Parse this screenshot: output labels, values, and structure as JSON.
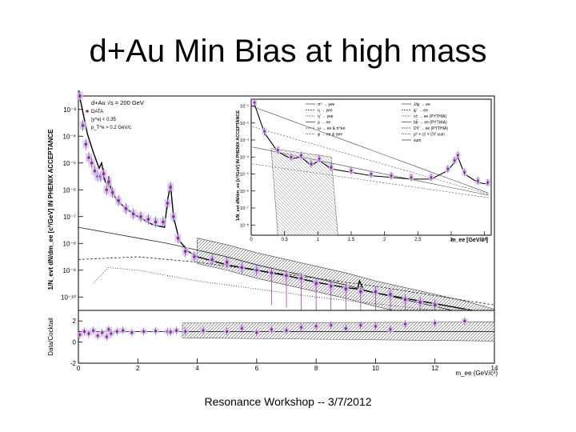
{
  "slide": {
    "title": "d+Au Min Bias at high mass",
    "footer": "Resonance Workshop -- 3/7/2012"
  },
  "chart_data": [
    {
      "type": "scatter",
      "panel": "main",
      "title": "",
      "header_lines": [
        "d+Au √s = 200 GeV",
        "DATA",
        "|y^e| < 0.35",
        "p_T^e > 0.2 GeV/c"
      ],
      "ylabel": "1/N_evt dN/dm_ee [c²/GeV] IN PHENIX ACCEPTANCE",
      "xlabel": "",
      "yscale": "log",
      "ylim_exp": [
        -10.5,
        -2.5
      ],
      "ytick_labels": [
        "10⁻³",
        "10⁻⁴",
        "10⁻⁵",
        "10⁻⁶",
        "10⁻⁷",
        "10⁻⁸",
        "10⁻⁹",
        "10⁻¹⁰"
      ],
      "xlim": [
        0,
        14
      ],
      "grid": false,
      "series": [
        {
          "name": "DATA",
          "color": "#a020a0",
          "x": [
            0.05,
            0.15,
            0.25,
            0.35,
            0.45,
            0.55,
            0.65,
            0.75,
            0.85,
            0.95,
            1.02,
            1.15,
            1.35,
            1.6,
            1.85,
            2.1,
            2.35,
            2.6,
            2.85,
            3.0,
            3.1,
            3.2,
            3.35,
            3.6,
            3.9,
            4.5,
            5.0,
            5.5,
            6.0,
            6.5,
            7.0,
            7.5,
            8.0,
            8.5,
            9.0,
            9.5,
            10.0,
            10.5,
            11.0,
            11.5,
            12.0,
            13.0
          ],
          "y": [
            -2.5,
            -3.6,
            -4.3,
            -4.8,
            -5.0,
            -5.3,
            -5.5,
            -5.5,
            -5.4,
            -6.0,
            -5.7,
            -6.1,
            -6.4,
            -6.7,
            -6.9,
            -7.0,
            -7.1,
            -7.2,
            -7.2,
            -6.5,
            -5.9,
            -7.0,
            -7.8,
            -8.3,
            -8.5,
            -8.6,
            -8.7,
            -8.9,
            -9.0,
            -9.1,
            -9.2,
            -9.3,
            -9.5,
            -9.6,
            -9.7,
            -9.8,
            -9.8,
            -9.9,
            -10.1,
            -10.2,
            -10.3,
            -10.6
          ]
        },
        {
          "name": "sum",
          "x": [
            0.0,
            0.3,
            0.5,
            0.7,
            0.78,
            0.9,
            1.0,
            1.02,
            1.1,
            1.3,
            1.6,
            2.0,
            2.5,
            2.9,
            3.0,
            3.1,
            3.2,
            3.4,
            3.7,
            4.0,
            5.0,
            6.0,
            7.0,
            8.0,
            9.0,
            9.4,
            9.46,
            9.6,
            10.0,
            11.0,
            12.0,
            13.0,
            14.0
          ],
          "y": [
            -2.3,
            -3.9,
            -4.6,
            -5.2,
            -5.0,
            -5.7,
            -5.8,
            -5.5,
            -6.0,
            -6.4,
            -6.7,
            -7.0,
            -7.3,
            -7.4,
            -6.4,
            -5.8,
            -7.0,
            -7.9,
            -8.3,
            -8.5,
            -8.8,
            -9.0,
            -9.2,
            -9.45,
            -9.65,
            -9.7,
            -9.4,
            -9.75,
            -9.85,
            -10.05,
            -10.25,
            -10.45,
            -10.65
          ]
        },
        {
          "name": "cc̄ → ee (PYTHIA)",
          "x": [
            0.0,
            1.0,
            2.0,
            3.0,
            4.0,
            5.0,
            6.0,
            7.0,
            8.0,
            9.0,
            10.0,
            11.0,
            12.0,
            13.0,
            14.0
          ],
          "y": [
            -7.4,
            -7.6,
            -7.8,
            -8.0,
            -8.25,
            -8.5,
            -8.8,
            -9.05,
            -9.3,
            -9.55,
            -9.85,
            -10.1,
            -10.35,
            -10.6,
            -10.9
          ]
        },
        {
          "name": "bb̄ → ee (PYTHIA)",
          "x": [
            0.0,
            2.0,
            4.0,
            6.0,
            8.0,
            10.0,
            12.0,
            14.0
          ],
          "y": [
            -8.6,
            -8.5,
            -8.7,
            -9.0,
            -9.3,
            -9.6,
            -9.95,
            -10.3
          ]
        },
        {
          "name": "Drell-Yan (PYTHIA)",
          "x": [
            0.5,
            1.0,
            2.0,
            3.0,
            4.0,
            6.0,
            8.0,
            10.0,
            12.0,
            14.0
          ],
          "y": [
            -9.5,
            -8.9,
            -9.0,
            -9.2,
            -9.4,
            -9.7,
            -10.0,
            -10.25,
            -10.5,
            -10.7
          ]
        }
      ]
    },
    {
      "type": "scatter",
      "panel": "inset",
      "ylabel": "1/N_evt dN/dm_ee [c²/GeV] IN PHENIX ACCEPTANCE",
      "xlabel": "m_ee [GeV/c²]",
      "yscale": "log",
      "ylim_exp": [
        -8.6,
        -0.6
      ],
      "ytick_labels": [
        "10⁻¹",
        "10⁻²",
        "10⁻³",
        "10⁻⁴",
        "10⁻⁵",
        "10⁻⁶",
        "10⁻⁷",
        "10⁻⁸"
      ],
      "xlim": [
        0,
        3.6
      ],
      "xtick_labels": [
        "0",
        "0.5",
        "1",
        "1.5",
        "2",
        "2.5",
        "3",
        "3.5"
      ],
      "legend_position": "top",
      "legend": [
        "π⁰ → γee",
        "η → γee",
        "η′ → γee",
        "ρ → ee",
        "ω → ee & π⁰ee",
        "φ → ee & ηee",
        "J/ψ → ee",
        "ψ′ → ee",
        "cc̄ → ee (PYTHIA)",
        "bb̄ → ee (PYTHIA)",
        "DY → ee (PYTHIA)",
        "ρ⁰ + cc̄ + DY sum",
        "sum"
      ],
      "series": [
        {
          "name": "DATA",
          "color": "#a020a0",
          "x": [
            0.05,
            0.2,
            0.4,
            0.6,
            0.75,
            0.9,
            1.02,
            1.2,
            1.5,
            1.8,
            2.1,
            2.4,
            2.7,
            2.95,
            3.05,
            3.1,
            3.2,
            3.4,
            3.55
          ],
          "y": [
            -0.8,
            -2.5,
            -3.6,
            -4.0,
            -3.9,
            -4.4,
            -4.1,
            -4.6,
            -4.8,
            -5.0,
            -5.1,
            -5.2,
            -5.2,
            -4.7,
            -4.2,
            -3.9,
            -4.9,
            -5.4,
            -5.5
          ]
        }
      ]
    },
    {
      "type": "scatter",
      "panel": "ratio",
      "ylabel": "Data/Cocktail",
      "xlabel": "m_ee (GeV/c²)",
      "xlim": [
        0,
        14
      ],
      "ylim": [
        -2,
        3
      ],
      "ytick_labels": [
        "-2",
        "0",
        "2"
      ],
      "xtick_labels": [
        "0",
        "2",
        "4",
        "6",
        "8",
        "10",
        "12",
        "14"
      ],
      "series": [
        {
          "name": "ratio",
          "color": "#a020a0",
          "x": [
            0.05,
            0.2,
            0.35,
            0.5,
            0.65,
            0.8,
            0.95,
            1.02,
            1.1,
            1.3,
            1.5,
            1.8,
            2.2,
            2.6,
            3.0,
            3.1,
            3.3,
            3.6,
            4.2,
            5.0,
            5.5,
            6.0,
            6.5,
            7.0,
            7.5,
            8.0,
            8.5,
            9.0,
            9.5,
            10.0,
            10.5,
            11.0,
            12.0,
            13.0
          ],
          "y": [
            0.7,
            1.0,
            0.8,
            1.1,
            0.6,
            0.9,
            0.5,
            1.2,
            0.8,
            1.0,
            1.1,
            0.9,
            1.0,
            1.05,
            1.0,
            0.95,
            1.1,
            1.0,
            1.1,
            1.0,
            1.3,
            0.9,
            1.2,
            1.1,
            1.4,
            1.5,
            1.6,
            1.3,
            1.6,
            1.5,
            1.2,
            1.7,
            1.8,
            2.0
          ]
        }
      ]
    }
  ]
}
